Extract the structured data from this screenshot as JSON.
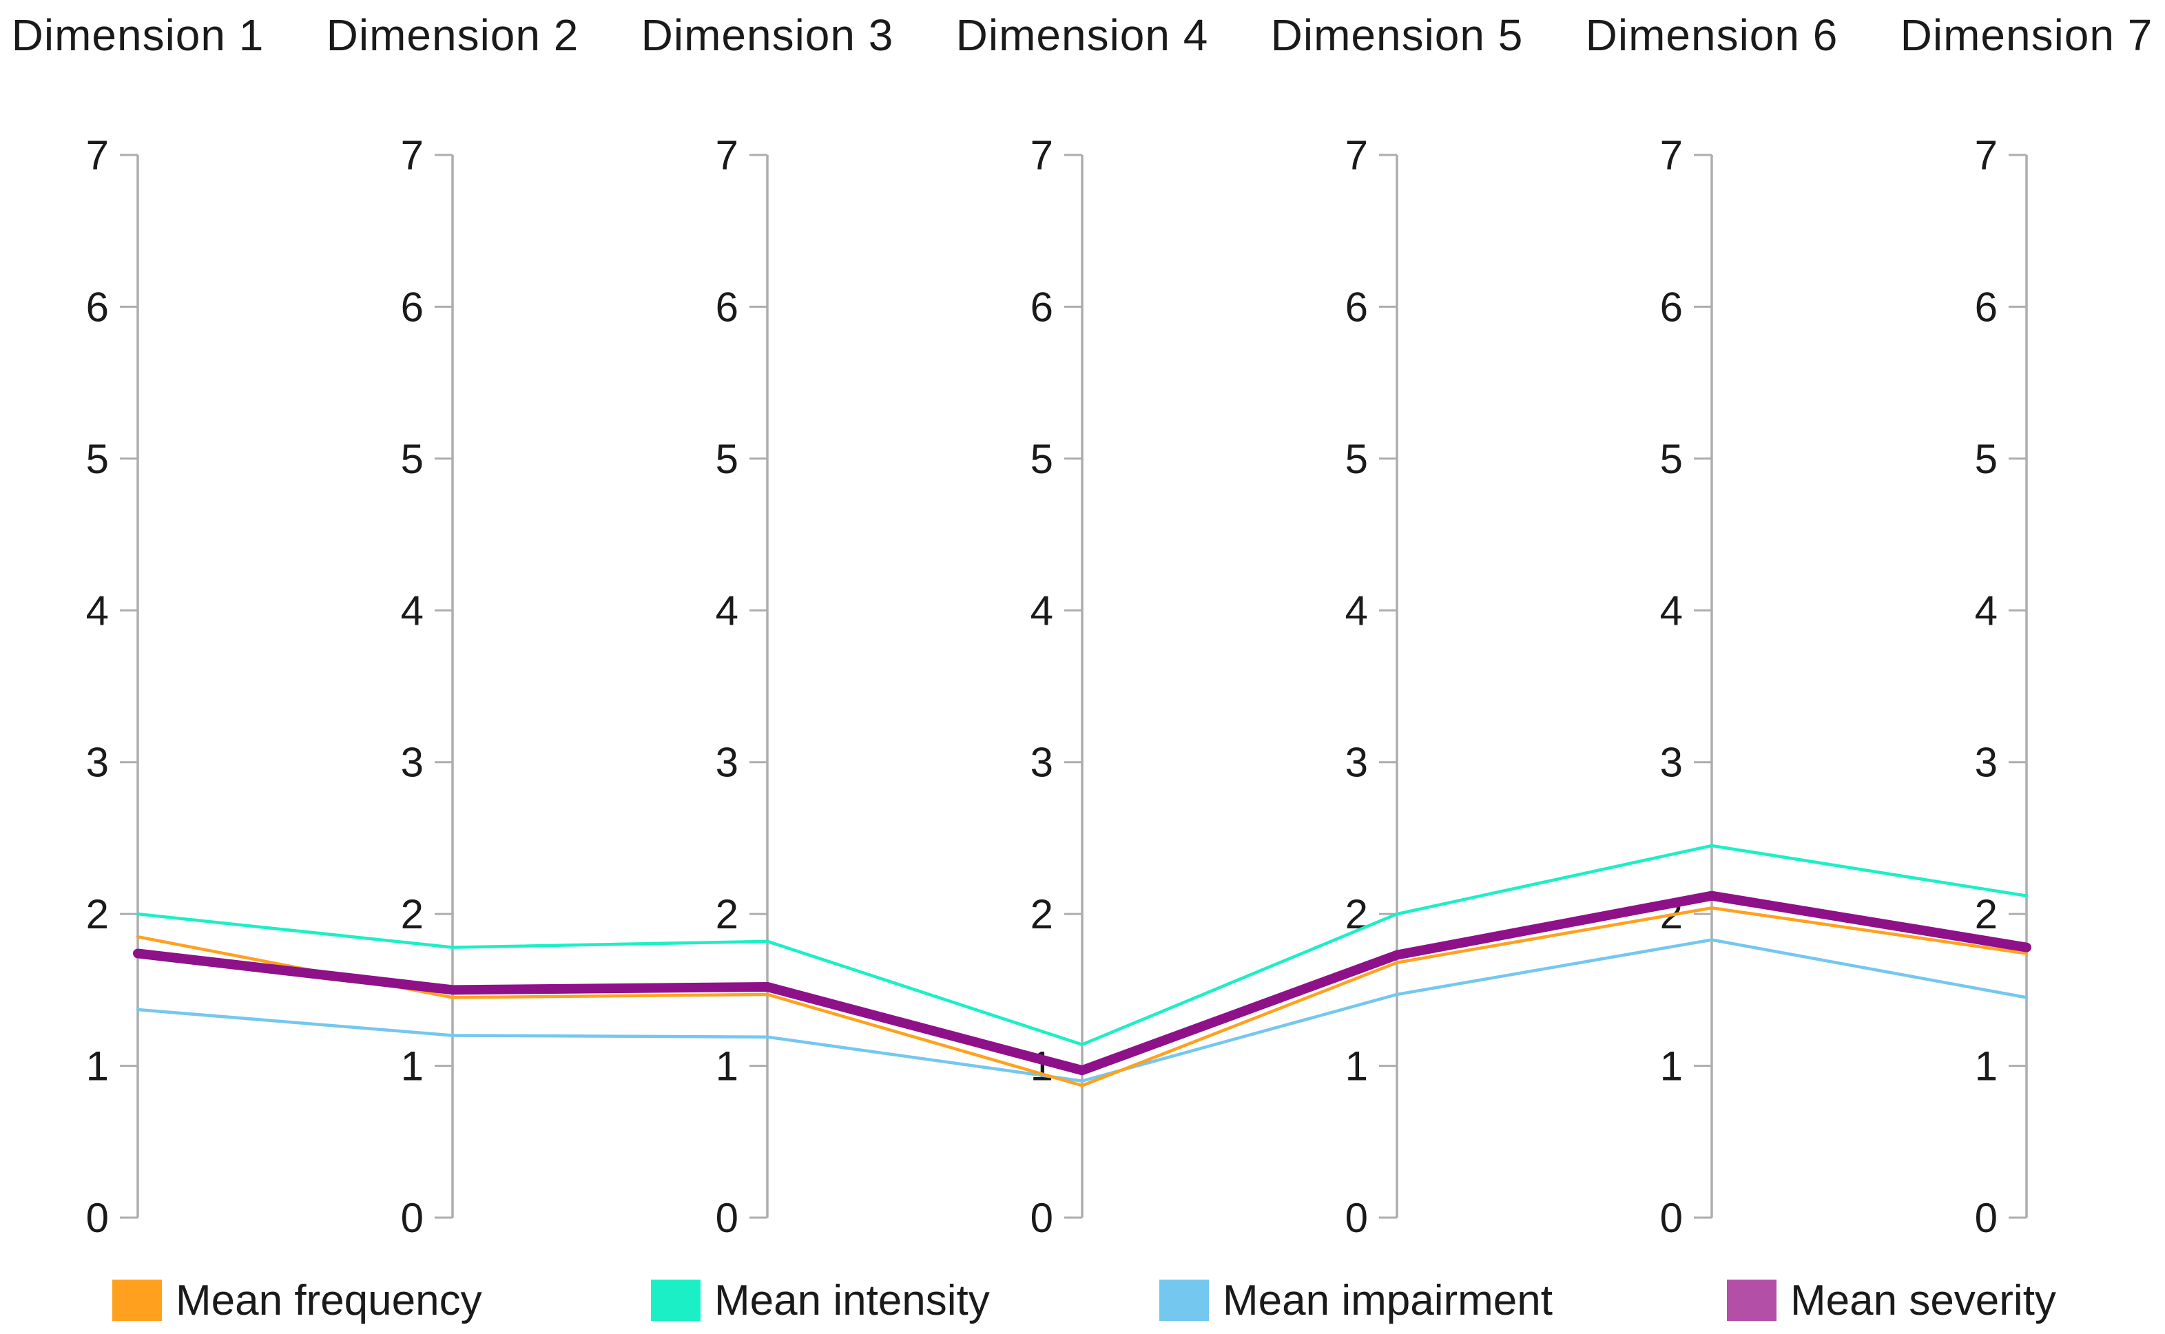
{
  "chart_data": {
    "type": "line",
    "variant": "parallel-coordinates",
    "title": "",
    "categories": [
      "Dimension 1",
      "Dimension 2",
      "Dimension 3",
      "Dimension 4",
      "Dimension 5",
      "Dimension 6",
      "Dimension 7"
    ],
    "axis": {
      "min": 0,
      "max": 7,
      "tick_labels": [
        "0",
        "1",
        "2",
        "3",
        "4",
        "5",
        "6",
        "7"
      ],
      "color": "#ADADAD"
    },
    "grid": false,
    "legend_position": "bottom",
    "series": [
      {
        "name": "Mean frequency",
        "color": "#FFA11F",
        "legend_color": "#FFA11F",
        "thickness": "thin",
        "values": [
          1.85,
          1.45,
          1.47,
          0.87,
          1.68,
          2.04,
          1.74
        ]
      },
      {
        "name": "Mean intensity",
        "color": "#1BEFC6",
        "legend_color": "#1BEFC6",
        "thickness": "thin",
        "values": [
          2.0,
          1.78,
          1.82,
          1.14,
          2.0,
          2.45,
          2.12
        ]
      },
      {
        "name": "Mean impairment",
        "color": "#74C7EF",
        "legend_color": "#74C7EF",
        "thickness": "thin",
        "values": [
          1.37,
          1.2,
          1.19,
          0.9,
          1.47,
          1.83,
          1.45
        ]
      },
      {
        "name": "Mean severity",
        "color": "#8E1189",
        "legend_color": "#B44FA8",
        "thickness": "thick",
        "values": [
          1.74,
          1.5,
          1.52,
          0.97,
          1.73,
          2.12,
          1.78
        ]
      }
    ]
  }
}
